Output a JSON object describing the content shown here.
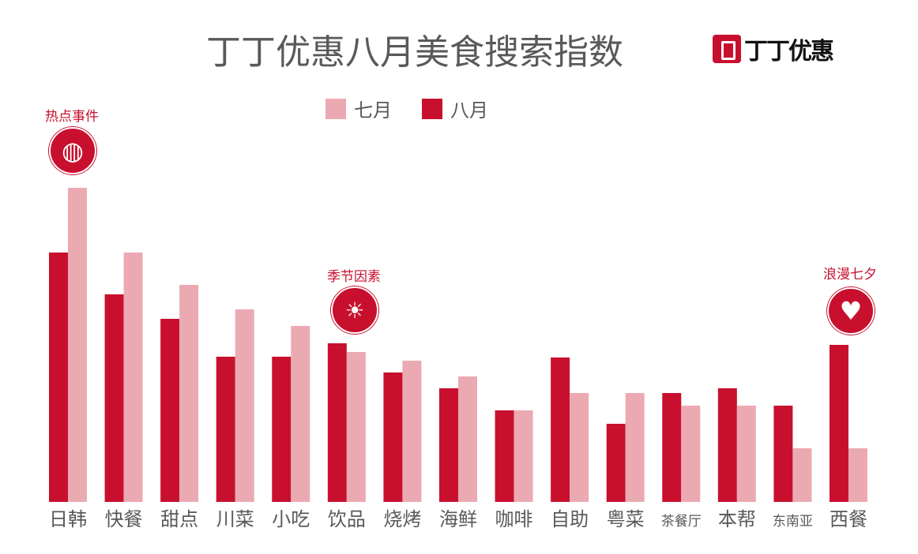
{
  "chart_data": {
    "type": "bar",
    "title": "丁丁优惠八月美食搜索指数",
    "categories": [
      "日韩",
      "快餐",
      "甜点",
      "川菜",
      "小吃",
      "饮品",
      "烧烤",
      "海鲜",
      "咖啡",
      "自助",
      "粤菜",
      "茶餐厅",
      "本帮",
      "东南亚",
      "西餐"
    ],
    "series": [
      {
        "name": "八月",
        "color": "#c8102e",
        "values": [
          316,
          263,
          232,
          184,
          184,
          201,
          164,
          144,
          116,
          183,
          99,
          138,
          144,
          122,
          199
        ]
      },
      {
        "name": "七月",
        "color": "#ebaab2",
        "values": [
          398,
          316,
          275,
          244,
          223,
          190,
          179,
          159,
          116,
          138,
          138,
          122,
          122,
          68,
          68
        ]
      }
    ],
    "legend": [
      {
        "label": "七月",
        "color": "#ebaab2"
      },
      {
        "label": "八月",
        "color": "#c8102e"
      }
    ],
    "legend_position": "top-center",
    "grid": false,
    "xlabel": "",
    "ylabel": "",
    "annotations": [
      {
        "label": "热点事件",
        "category": "日韩",
        "icon": "globe-icon"
      },
      {
        "label": "季节因素",
        "category": "饮品",
        "icon": "thermometer-sun-icon"
      },
      {
        "label": "浪漫七夕",
        "category": "西餐",
        "icon": "heart-icon"
      }
    ]
  },
  "logo": {
    "text": "丁丁优惠"
  }
}
